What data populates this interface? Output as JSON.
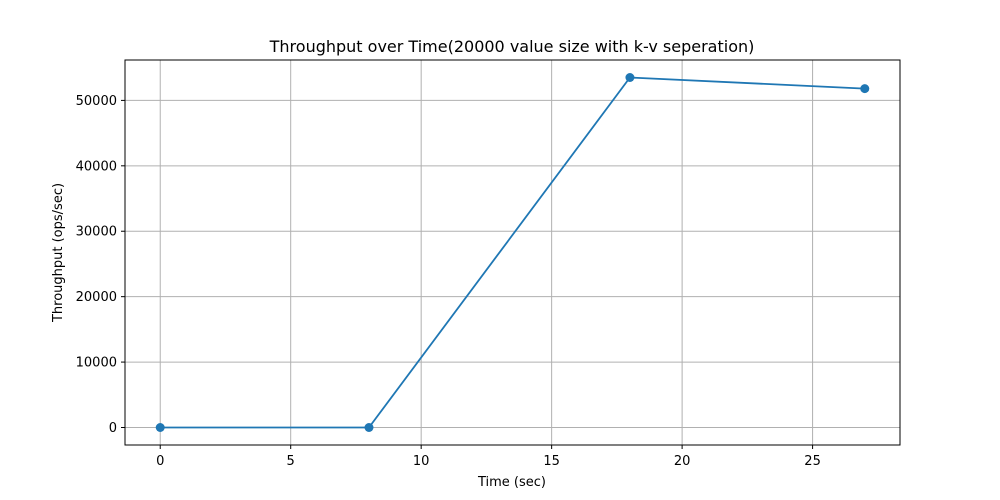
{
  "chart_data": {
    "type": "line",
    "title": "Throughput over Time(20000 value size with k-v seperation)",
    "xlabel": "Time (sec)",
    "ylabel": "Throughput (ops/sec)",
    "x": [
      0,
      8,
      18,
      27
    ],
    "series": [
      {
        "values": [
          0,
          0,
          53500,
          51800
        ],
        "color": "#1f77b4",
        "marker": "circle"
      }
    ],
    "xlim": [
      -1.35,
      28.35
    ],
    "ylim": [
      -2675,
      56175
    ],
    "xticks": [
      0,
      5,
      10,
      15,
      20,
      25
    ],
    "xtick_labels": [
      "0",
      "5",
      "10",
      "15",
      "20",
      "25"
    ],
    "yticks": [
      0,
      10000,
      20000,
      30000,
      40000,
      50000
    ],
    "ytick_labels": [
      "0",
      "10000",
      "20000",
      "30000",
      "40000",
      "50000"
    ],
    "grid": true,
    "legend": "none"
  }
}
